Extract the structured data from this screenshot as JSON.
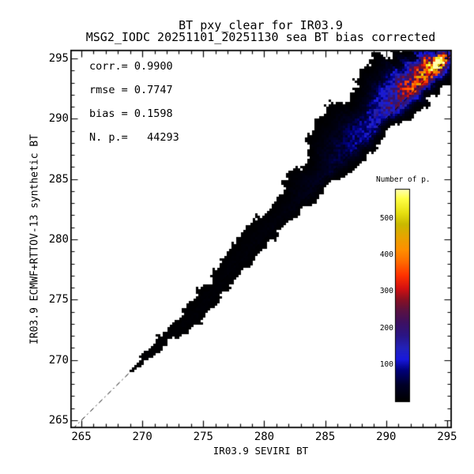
{
  "title": {
    "line1": "BT pxy_clear for IR03.9",
    "line2": "MSG2_IODC 20251101_20251130 sea BT bias corrected"
  },
  "stats": {
    "corr_label": "corr.= 0.9900",
    "rmse_label": "rmse = 0.7747",
    "bias_label": "bias = 0.1598",
    "npoints_label": "N. p.=   44293"
  },
  "axes": {
    "x": {
      "title": "IR03.9 SEVIRI BT",
      "tick_labels": [
        "265",
        "270",
        "275",
        "280",
        "285",
        "290",
        "295"
      ]
    },
    "y": {
      "title": "IR03.9 ECMWF+RTTOV-13 synthetic BT",
      "tick_labels": [
        "265",
        "270",
        "275",
        "280",
        "285",
        "290",
        "295"
      ]
    }
  },
  "colorbar": {
    "title": "Number of p.",
    "tick_labels": [
      "100",
      "200",
      "300",
      "400",
      "500"
    ]
  },
  "chart_data": {
    "type": "heatmap",
    "subtype": "density-scatter-2d-histogram",
    "title": "BT pxy_clear for IR03.9",
    "subtitle": "MSG2_IODC 20251101_20251130 sea BT bias corrected",
    "xlabel": "IR03.9 SEVIRI BT",
    "ylabel": "IR03.9 ECMWF+RTTOV-13 synthetic BT",
    "xlim": [
      264.1,
      295.5
    ],
    "ylim": [
      264.3,
      295.8
    ],
    "x_ticks": [
      265,
      270,
      275,
      280,
      285,
      290,
      295
    ],
    "y_ticks": [
      265,
      270,
      275,
      280,
      285,
      290,
      295
    ],
    "minor_tick_step": 1,
    "grid": false,
    "statistics": {
      "corr": 0.99,
      "rmse": 0.7747,
      "bias": 0.1598,
      "n_points": 44293
    },
    "identity_line": {
      "style": "dash-dot",
      "from": 264.3,
      "to": 295.9
    },
    "colorbar": {
      "label": "Number of p.",
      "ticks": [
        100,
        200,
        300,
        400,
        500
      ],
      "range": [
        0,
        580
      ],
      "colormap_stops": [
        [
          0,
          "#000000"
        ],
        [
          45,
          "#000028"
        ],
        [
          85,
          "#00007a"
        ],
        [
          115,
          "#1818dd"
        ],
        [
          145,
          "#2222bb"
        ],
        [
          180,
          "#2a1585"
        ],
        [
          215,
          "#3d1062"
        ],
        [
          250,
          "#5c1240"
        ],
        [
          280,
          "#8c1022"
        ],
        [
          310,
          "#d51111"
        ],
        [
          345,
          "#ff3300"
        ],
        [
          385,
          "#ff6f00"
        ],
        [
          415,
          "#ff8f00"
        ],
        [
          450,
          "#e8a400"
        ],
        [
          485,
          "#c9b900"
        ],
        [
          515,
          "#e6df10"
        ],
        [
          555,
          "#ffff45"
        ],
        [
          580,
          "#ffffb0"
        ]
      ]
    },
    "density_band": {
      "description": "counts along diagonal y=x; gaussian cross-profile read from plot",
      "t": [
        268.8,
        269.3,
        270,
        271,
        272.5,
        274,
        276,
        278,
        280,
        282,
        284,
        286,
        288,
        290,
        291.5,
        293,
        294,
        295,
        295.9
      ],
      "peak_count": [
        0,
        3,
        4,
        5,
        5.5,
        6.5,
        7.5,
        8.5,
        10,
        14,
        24,
        45,
        85,
        150,
        230,
        380,
        480,
        260,
        130
      ],
      "center_offset": [
        0,
        0,
        0,
        -0.1,
        -0.35,
        -0.6,
        -0.2,
        0.15,
        0.3,
        0.3,
        0.35,
        0.4,
        0.45,
        0.5,
        0.5,
        0.4,
        0.3,
        0.15,
        0
      ],
      "sigma_below": [
        0.1,
        0.15,
        0.2,
        0.3,
        0.45,
        0.6,
        0.5,
        0.5,
        0.5,
        0.5,
        0.52,
        0.55,
        0.6,
        0.65,
        0.7,
        0.7,
        0.65,
        0.6,
        0.55
      ],
      "sigma_above": [
        0.1,
        0.18,
        0.25,
        0.4,
        0.55,
        0.75,
        0.7,
        0.8,
        0.9,
        1.0,
        1.15,
        1.35,
        1.55,
        1.65,
        1.55,
        1.35,
        1.1,
        0.9,
        0.7
      ]
    },
    "hotspot": {
      "x": 294.15,
      "y": 294.5,
      "peak": 590,
      "sigma_along": 0.85,
      "sigma_cross": 0.5
    }
  }
}
